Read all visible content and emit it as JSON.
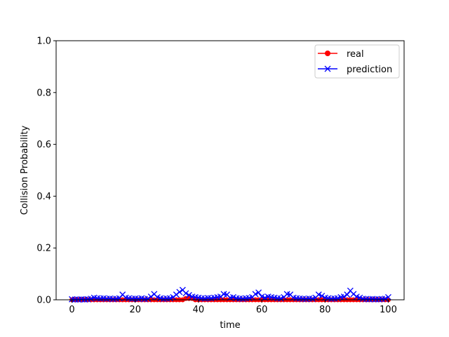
{
  "chart_data": {
    "type": "line",
    "title": "",
    "xlabel": "time",
    "ylabel": "Collision Probability",
    "xlim": [
      -5,
      105
    ],
    "ylim": [
      0.0,
      1.0
    ],
    "x_ticks": [
      0,
      20,
      40,
      60,
      80,
      100
    ],
    "y_ticks": [
      0.0,
      0.2,
      0.4,
      0.6,
      0.8,
      1.0
    ],
    "legend_position": "top-right",
    "grid": false,
    "x": [
      0,
      1,
      2,
      3,
      4,
      5,
      6,
      7,
      8,
      9,
      10,
      11,
      12,
      13,
      14,
      15,
      16,
      17,
      18,
      19,
      20,
      21,
      22,
      23,
      24,
      25,
      26,
      27,
      28,
      29,
      30,
      31,
      32,
      33,
      34,
      35,
      36,
      37,
      38,
      39,
      40,
      41,
      42,
      43,
      44,
      45,
      46,
      47,
      48,
      49,
      50,
      51,
      52,
      53,
      54,
      55,
      56,
      57,
      58,
      59,
      60,
      61,
      62,
      63,
      64,
      65,
      66,
      67,
      68,
      69,
      70,
      71,
      72,
      73,
      74,
      75,
      76,
      77,
      78,
      79,
      80,
      81,
      82,
      83,
      84,
      85,
      86,
      87,
      88,
      89,
      90,
      91,
      92,
      93,
      94,
      95,
      96,
      97,
      98,
      99,
      100
    ],
    "series": [
      {
        "name": "real",
        "color": "#ff0000",
        "marker": "circle",
        "values": [
          0,
          0,
          0,
          0,
          0,
          0,
          0,
          0,
          0,
          0,
          0,
          0,
          0,
          0,
          0,
          0,
          0,
          0,
          0,
          0,
          0,
          0,
          0,
          0,
          0,
          0,
          0,
          0,
          0,
          0,
          0,
          0,
          0,
          0,
          0,
          0,
          0.005,
          0.005,
          0.005,
          0,
          0,
          0,
          0,
          0,
          0,
          0,
          0,
          0,
          0,
          0,
          0,
          0,
          0,
          0,
          0,
          0,
          0,
          0,
          0,
          0,
          0,
          0,
          0,
          0,
          0,
          0,
          0,
          0,
          0,
          0,
          0,
          0,
          0,
          0,
          0,
          0,
          0,
          0,
          0,
          0,
          0,
          0,
          0,
          0,
          0,
          0,
          0,
          0,
          0,
          0,
          0,
          0,
          0,
          0,
          0,
          0,
          0,
          0,
          0,
          0,
          0
        ]
      },
      {
        "name": "prediction",
        "color": "#0000ff",
        "marker": "x",
        "values": [
          0.002,
          0.001,
          0.001,
          0.002,
          0.001,
          0.002,
          0.004,
          0.008,
          0.006,
          0.005,
          0.006,
          0.004,
          0.005,
          0.003,
          0.004,
          0.006,
          0.02,
          0.008,
          0.006,
          0.004,
          0.005,
          0.004,
          0.006,
          0.003,
          0.004,
          0.012,
          0.022,
          0.01,
          0.006,
          0.004,
          0.005,
          0.006,
          0.01,
          0.02,
          0.03,
          0.038,
          0.025,
          0.018,
          0.012,
          0.01,
          0.008,
          0.006,
          0.005,
          0.007,
          0.006,
          0.008,
          0.01,
          0.012,
          0.022,
          0.02,
          0.008,
          0.01,
          0.006,
          0.005,
          0.004,
          0.006,
          0.007,
          0.01,
          0.022,
          0.028,
          0.012,
          0.008,
          0.012,
          0.01,
          0.008,
          0.006,
          0.005,
          0.01,
          0.022,
          0.02,
          0.008,
          0.006,
          0.005,
          0.004,
          0.003,
          0.005,
          0.004,
          0.008,
          0.02,
          0.015,
          0.008,
          0.006,
          0.004,
          0.005,
          0.006,
          0.01,
          0.012,
          0.02,
          0.035,
          0.022,
          0.012,
          0.008,
          0.004,
          0.003,
          0.002,
          0.003,
          0.002,
          0.002,
          0.003,
          0.004,
          0.01
        ]
      }
    ]
  }
}
